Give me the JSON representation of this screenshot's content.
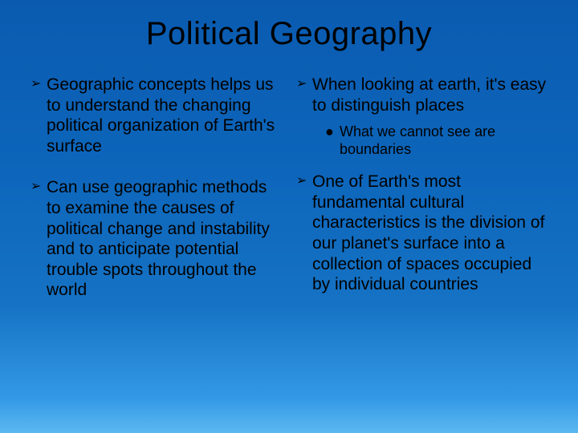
{
  "slide": {
    "title": "Political Geography",
    "background_gradient": [
      "#0a5bb0",
      "#0d66bb",
      "#1572c4",
      "#3399e6",
      "#5bb8f0"
    ],
    "text_color": "#000000",
    "title_fontsize": 40,
    "body_fontsize": 21,
    "sub_fontsize": 18,
    "bullet_glyph": "➢",
    "sub_bullet_glyph": "●",
    "left_column": {
      "items": [
        {
          "text": "Geographic concepts helps us to understand the changing political organization of Earth's surface"
        },
        {
          "text": "Can use geographic methods to examine the causes of political change and instability and to anticipate potential trouble spots throughout the world"
        }
      ]
    },
    "right_column": {
      "items": [
        {
          "text": "When looking at earth, it's easy to distinguish places",
          "sub": [
            {
              "text": "What we cannot see are boundaries"
            }
          ]
        },
        {
          "text": "One of Earth's most fundamental cultural characteristics is the division of our planet's surface into a collection of spaces occupied by individual countries"
        }
      ]
    }
  }
}
